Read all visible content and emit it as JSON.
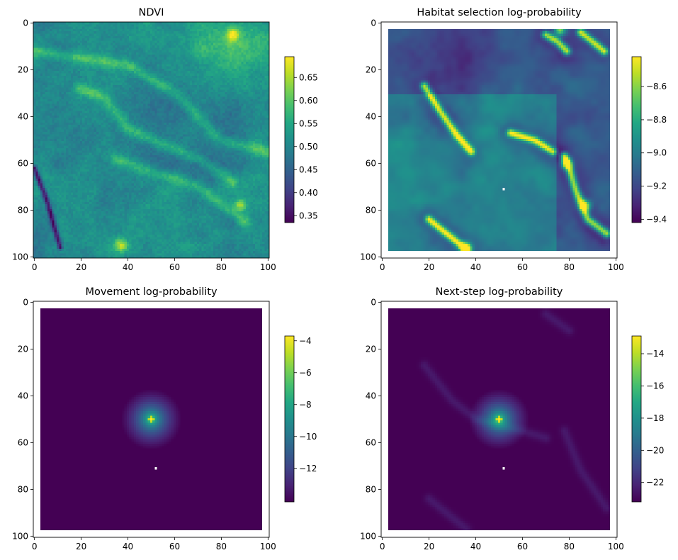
{
  "chart_data": [
    {
      "type": "heatmap",
      "title": "NDVI",
      "xlim": [
        0,
        100
      ],
      "ylim": [
        100,
        0
      ],
      "xticks": [
        0,
        20,
        40,
        60,
        80,
        100
      ],
      "yticks": [
        0,
        20,
        40,
        60,
        80,
        100
      ],
      "colormap": "viridis",
      "colorbar": {
        "min": 0.335,
        "max": 0.695,
        "ticks": [
          "0.35",
          "0.40",
          "0.45",
          "0.50",
          "0.55",
          "0.60",
          "0.65"
        ],
        "tick_values": [
          0.35,
          0.4,
          0.45,
          0.5,
          0.55,
          0.6,
          0.65
        ]
      },
      "padding_cells": 0,
      "features": {
        "ridges": [
          [
            [
              0,
              12
            ],
            [
              20,
              15
            ],
            [
              40,
              18
            ],
            [
              60,
              30
            ],
            [
              80,
              50
            ],
            [
              100,
              55
            ]
          ],
          [
            [
              20,
              28
            ],
            [
              30,
              32
            ],
            [
              40,
              45
            ],
            [
              55,
              52
            ],
            [
              70,
              58
            ],
            [
              85,
              68
            ]
          ],
          [
            [
              35,
              58
            ],
            [
              45,
              62
            ],
            [
              55,
              65
            ],
            [
              70,
              70
            ],
            [
              90,
              85
            ]
          ]
        ],
        "bright_spots": [
          [
            88,
            78
          ],
          [
            37,
            95
          ],
          [
            85,
            5
          ]
        ],
        "dark_line": [
          [
            0,
            62
          ],
          [
            5,
            75
          ],
          [
            11,
            96
          ]
        ]
      }
    },
    {
      "type": "heatmap",
      "title": "Habitat selection log-probability",
      "xlim": [
        0,
        100
      ],
      "ylim": [
        100,
        0
      ],
      "xticks": [
        0,
        20,
        40,
        60,
        80,
        100
      ],
      "yticks": [
        0,
        20,
        40,
        60,
        80,
        100
      ],
      "colormap": "viridis",
      "colorbar": {
        "min": -9.42,
        "max": -8.42,
        "ticks": [
          "−9.4",
          "−9.2",
          "−9.0",
          "−8.8",
          "−8.6"
        ],
        "tick_values": [
          -9.4,
          -9.2,
          -9.0,
          -8.8,
          -8.6
        ]
      },
      "padding_cells": 3,
      "marker": [
        52,
        71
      ],
      "features": {
        "ridges": [
          [
            [
              18,
              27
            ],
            [
              25,
              38
            ],
            [
              32,
              48
            ],
            [
              38,
              55
            ]
          ],
          [
            [
              55,
              47
            ],
            [
              65,
              50
            ],
            [
              73,
              55
            ]
          ],
          [
            [
              78,
              57
            ],
            [
              80,
              62
            ],
            [
              83,
              72
            ],
            [
              88,
              84
            ],
            [
              96,
              90
            ]
          ],
          [
            [
              20,
              84
            ],
            [
              30,
              92
            ],
            [
              36,
              97
            ]
          ],
          [
            [
              70,
              5
            ],
            [
              75,
              8
            ],
            [
              79,
              12
            ]
          ],
          [
            [
              85,
              4
            ],
            [
              90,
              8
            ],
            [
              95,
              12
            ]
          ]
        ],
        "bright_spots": [
          [
            87,
            78
          ],
          [
            76,
            3
          ],
          [
            79,
            60
          ],
          [
            36,
            96
          ]
        ]
      }
    },
    {
      "type": "heatmap",
      "title": "Movement log-probability",
      "xlim": [
        0,
        100
      ],
      "ylim": [
        100,
        0
      ],
      "xticks": [
        0,
        20,
        40,
        60,
        80,
        100
      ],
      "yticks": [
        0,
        20,
        40,
        60,
        80,
        100
      ],
      "colormap": "viridis",
      "colorbar": {
        "min": -14.1,
        "max": -3.7,
        "ticks": [
          "−12",
          "−10",
          "−8",
          "−6",
          "−4"
        ],
        "tick_values": [
          -12,
          -10,
          -8,
          -6,
          -4
        ]
      },
      "padding_cells": 3,
      "marker": [
        52,
        71
      ],
      "center": [
        50,
        50
      ]
    },
    {
      "type": "heatmap",
      "title": "Next-step log-probability",
      "xlim": [
        0,
        100
      ],
      "ylim": [
        100,
        0
      ],
      "xticks": [
        0,
        20,
        40,
        60,
        80,
        100
      ],
      "yticks": [
        0,
        20,
        40,
        60,
        80,
        100
      ],
      "colormap": "viridis",
      "colorbar": {
        "min": -23.2,
        "max": -12.9,
        "ticks": [
          "−22",
          "−20",
          "−18",
          "−16",
          "−14"
        ],
        "tick_values": [
          -22,
          -20,
          -18,
          -16,
          -14
        ]
      },
      "padding_cells": 3,
      "marker": [
        52,
        71
      ],
      "center": [
        50,
        50
      ]
    }
  ]
}
